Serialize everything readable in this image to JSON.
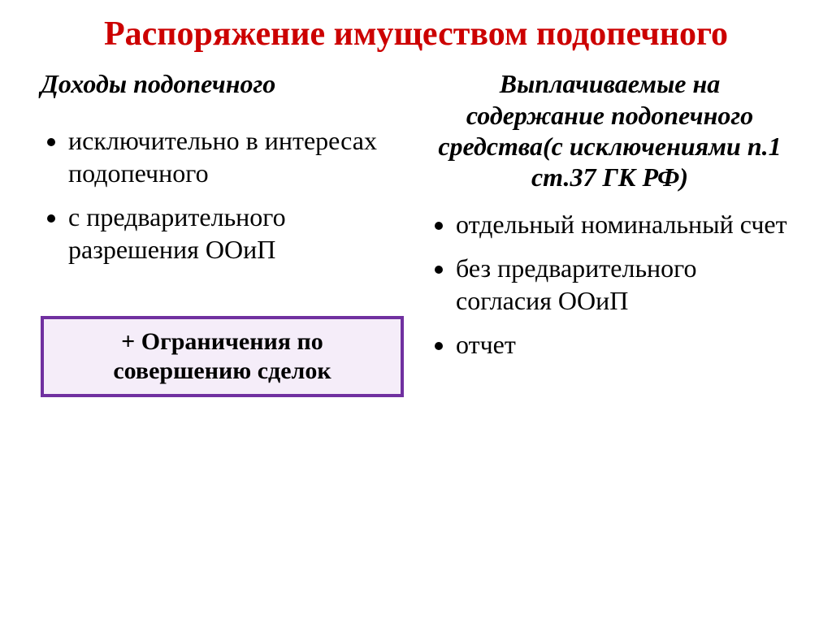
{
  "title": "Распоряжение имуществом подопечного",
  "left": {
    "heading": "Доходы подопечного",
    "items": [
      "исключительно в интересах подопечного",
      "с предварительного разрешения ООиП"
    ]
  },
  "right": {
    "heading": "Выплачиваемые на содержание подопечного средства(с исключениями п.1 ст.37 ГК РФ)",
    "items": [
      "отдельный номинальный счет",
      "без предварительного согласия ООиП",
      "отчет"
    ]
  },
  "box_text": "+ Ограничения по совершению сделок",
  "colors": {
    "title": "#cc0000",
    "text": "#000000",
    "box_border": "#7030a0",
    "box_bg": "#f5edf9",
    "background": "#ffffff"
  }
}
